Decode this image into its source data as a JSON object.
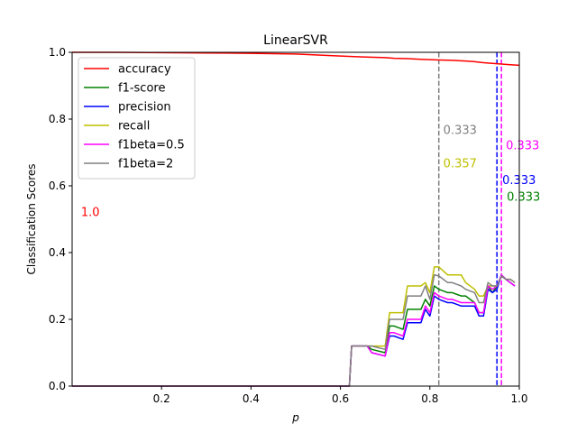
{
  "chart_data": {
    "type": "line",
    "title": "LinearSVR",
    "xlabel": "p",
    "ylabel": "Classification Scores",
    "xlim": [
      0.0,
      1.0
    ],
    "ylim": [
      0.0,
      1.0
    ],
    "x_ticks": [
      0.2,
      0.4,
      0.6,
      0.8,
      1.0
    ],
    "x_tick_labels": [
      "0.2",
      "0.4",
      "0.6",
      "0.8",
      "1.0"
    ],
    "y_ticks": [
      0.0,
      0.2,
      0.4,
      0.6,
      0.8,
      1.0
    ],
    "y_tick_labels": [
      "0.0",
      "0.2",
      "0.4",
      "0.6",
      "0.8",
      "1.0"
    ],
    "grid": false,
    "legend_position": "top-left",
    "series": [
      {
        "name": "accuracy",
        "color": "#ff0000",
        "x": [
          0.0,
          0.1,
          0.2,
          0.3,
          0.4,
          0.5,
          0.55,
          0.6,
          0.65,
          0.7,
          0.72,
          0.75,
          0.78,
          0.8,
          0.82,
          0.85,
          0.88,
          0.9,
          0.92,
          0.94,
          0.96,
          0.98,
          1.0
        ],
        "y": [
          1.0,
          1.0,
          0.999,
          0.998,
          0.997,
          0.995,
          0.992,
          0.989,
          0.986,
          0.984,
          0.982,
          0.981,
          0.979,
          0.978,
          0.977,
          0.976,
          0.974,
          0.972,
          0.969,
          0.967,
          0.965,
          0.963,
          0.961
        ]
      },
      {
        "name": "f1-score",
        "color": "#008000",
        "x": [
          0.0,
          0.62,
          0.625,
          0.66,
          0.67,
          0.7,
          0.71,
          0.72,
          0.74,
          0.75,
          0.76,
          0.78,
          0.79,
          0.8,
          0.81,
          0.82,
          0.84,
          0.85,
          0.87,
          0.88,
          0.9,
          0.91,
          0.92,
          0.93,
          0.94,
          0.95,
          0.96,
          0.97,
          0.98,
          0.99
        ],
        "y": [
          0.0,
          0.0,
          0.12,
          0.12,
          0.11,
          0.1,
          0.18,
          0.18,
          0.17,
          0.23,
          0.23,
          0.23,
          0.26,
          0.24,
          0.3,
          0.29,
          0.28,
          0.28,
          0.27,
          0.27,
          0.25,
          0.22,
          0.22,
          0.3,
          0.28,
          0.3,
          0.33,
          0.32,
          0.31,
          0.3
        ]
      },
      {
        "name": "precision",
        "color": "#0000ff",
        "x": [
          0.0,
          0.62,
          0.625,
          0.66,
          0.67,
          0.7,
          0.71,
          0.72,
          0.74,
          0.75,
          0.76,
          0.78,
          0.79,
          0.8,
          0.81,
          0.82,
          0.84,
          0.85,
          0.87,
          0.88,
          0.9,
          0.91,
          0.92,
          0.93,
          0.94,
          0.95,
          0.96,
          0.97,
          0.98,
          0.99
        ],
        "y": [
          0.0,
          0.0,
          0.12,
          0.12,
          0.1,
          0.09,
          0.15,
          0.15,
          0.14,
          0.19,
          0.19,
          0.19,
          0.23,
          0.21,
          0.27,
          0.26,
          0.25,
          0.25,
          0.24,
          0.24,
          0.24,
          0.21,
          0.21,
          0.29,
          0.28,
          0.29,
          0.333,
          0.32,
          0.31,
          0.3
        ]
      },
      {
        "name": "recall",
        "color": "#bfbf00",
        "x": [
          0.0,
          0.62,
          0.625,
          0.66,
          0.67,
          0.7,
          0.71,
          0.72,
          0.74,
          0.75,
          0.76,
          0.78,
          0.79,
          0.8,
          0.81,
          0.82,
          0.84,
          0.85,
          0.87,
          0.88,
          0.9,
          0.91,
          0.92,
          0.93,
          0.94,
          0.95,
          0.96,
          0.97,
          0.98,
          0.99
        ],
        "y": [
          0.0,
          0.0,
          0.12,
          0.12,
          0.12,
          0.12,
          0.22,
          0.22,
          0.22,
          0.3,
          0.3,
          0.3,
          0.31,
          0.28,
          0.357,
          0.357,
          0.333,
          0.333,
          0.333,
          0.31,
          0.29,
          0.27,
          0.27,
          0.3,
          0.3,
          0.3,
          0.33,
          0.32,
          0.32,
          0.31
        ]
      },
      {
        "name": "f1beta=0.5",
        "color": "#ff00ff",
        "x": [
          0.0,
          0.62,
          0.625,
          0.66,
          0.67,
          0.7,
          0.71,
          0.72,
          0.74,
          0.75,
          0.76,
          0.78,
          0.79,
          0.8,
          0.81,
          0.82,
          0.84,
          0.85,
          0.87,
          0.88,
          0.9,
          0.91,
          0.92,
          0.93,
          0.94,
          0.95,
          0.96,
          0.97,
          0.98,
          0.99
        ],
        "y": [
          0.0,
          0.0,
          0.12,
          0.12,
          0.1,
          0.09,
          0.16,
          0.16,
          0.15,
          0.2,
          0.2,
          0.2,
          0.24,
          0.22,
          0.28,
          0.27,
          0.26,
          0.26,
          0.25,
          0.25,
          0.25,
          0.22,
          0.22,
          0.3,
          0.29,
          0.3,
          0.333,
          0.32,
          0.31,
          0.3
        ]
      },
      {
        "name": "f1beta=2",
        "color": "#808080",
        "x": [
          0.0,
          0.62,
          0.625,
          0.66,
          0.67,
          0.7,
          0.71,
          0.72,
          0.74,
          0.75,
          0.76,
          0.78,
          0.79,
          0.8,
          0.81,
          0.82,
          0.84,
          0.85,
          0.87,
          0.88,
          0.9,
          0.91,
          0.92,
          0.93,
          0.94,
          0.95,
          0.96,
          0.97,
          0.98,
          0.99
        ],
        "y": [
          0.0,
          0.0,
          0.12,
          0.12,
          0.12,
          0.11,
          0.2,
          0.2,
          0.2,
          0.27,
          0.27,
          0.27,
          0.3,
          0.26,
          0.333,
          0.33,
          0.31,
          0.31,
          0.3,
          0.29,
          0.28,
          0.25,
          0.25,
          0.31,
          0.3,
          0.3,
          0.33,
          0.32,
          0.32,
          0.31
        ]
      }
    ],
    "vlines": [
      {
        "x": 0.82,
        "color": "#808080"
      },
      {
        "x": 0.95,
        "color": "#0000ff"
      },
      {
        "x": 0.96,
        "color": "#ff00ff"
      }
    ],
    "annotations": [
      {
        "text": "1.0",
        "x": 0.02,
        "y": 0.51,
        "color": "#ff0000"
      },
      {
        "text": "0.333",
        "x": 0.83,
        "y": 0.755,
        "color": "#808080"
      },
      {
        "text": "0.357",
        "x": 0.83,
        "y": 0.655,
        "color": "#bfbf00"
      },
      {
        "text": "0.333",
        "x": 0.97,
        "y": 0.71,
        "color": "#ff00ff"
      },
      {
        "text": "0.333",
        "x": 0.962,
        "y": 0.605,
        "color": "#0000ff"
      },
      {
        "text": "0.333",
        "x": 0.972,
        "y": 0.555,
        "color": "#008000"
      }
    ]
  }
}
